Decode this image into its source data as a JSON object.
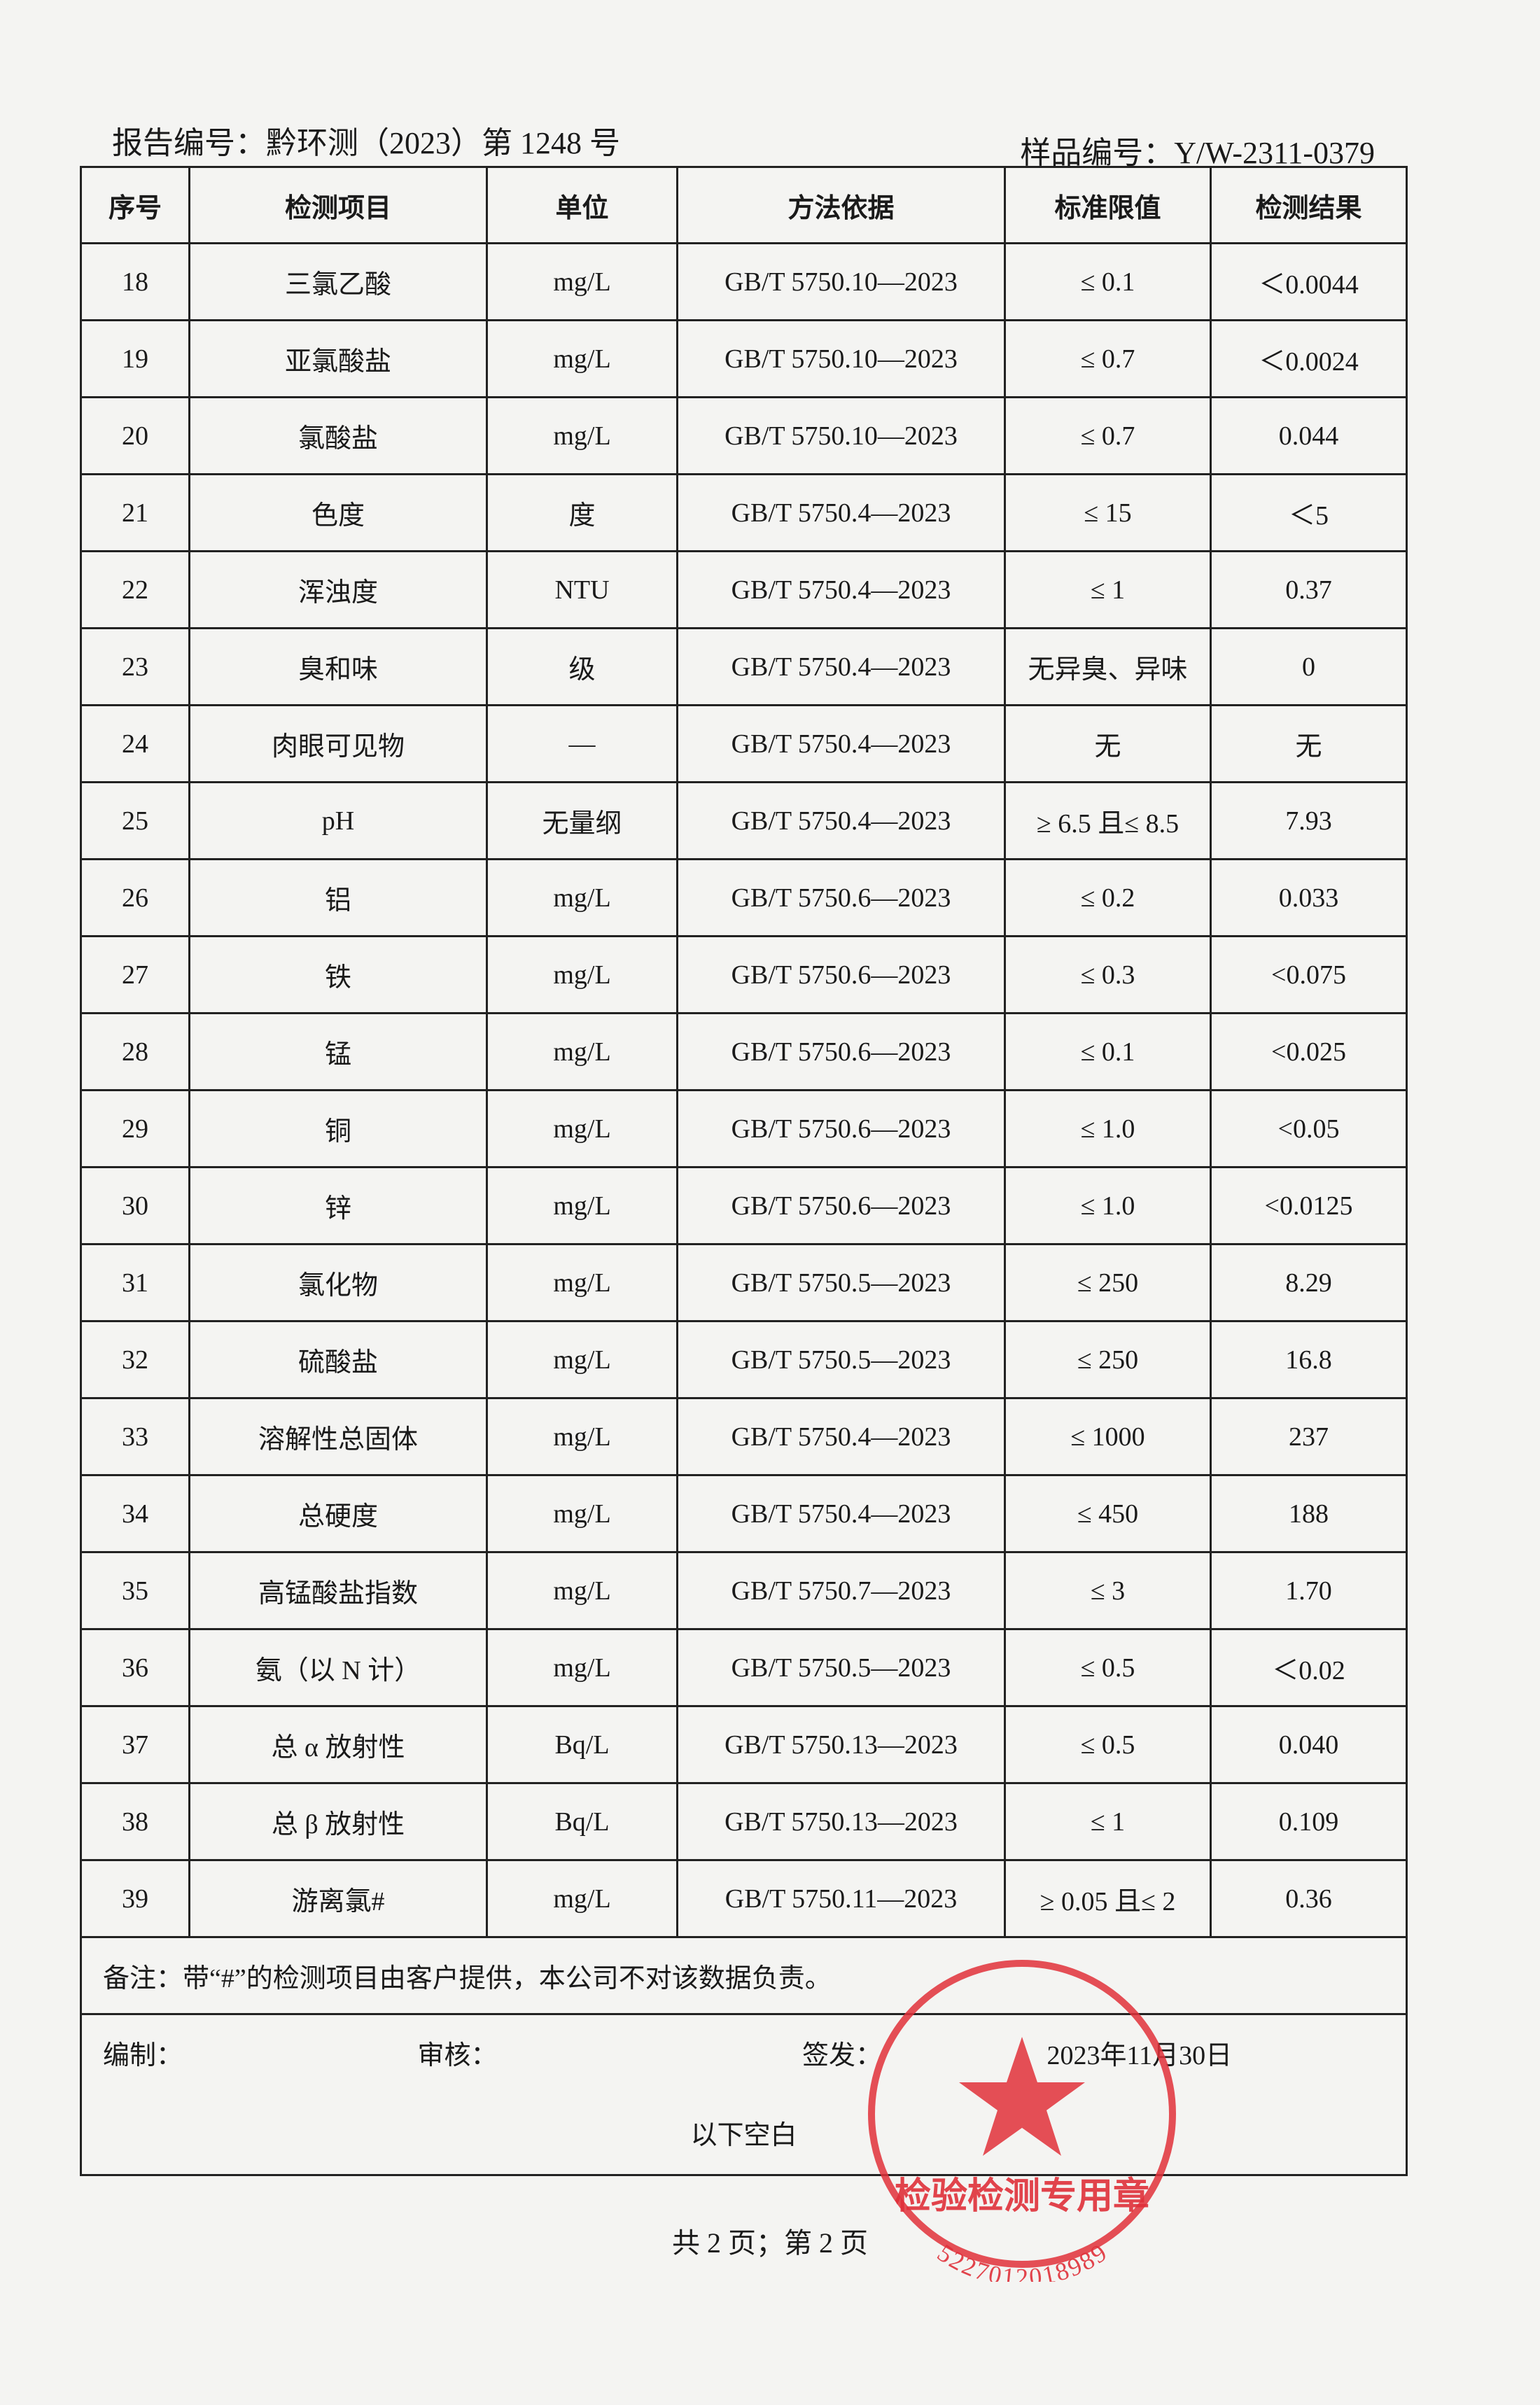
{
  "header": {
    "report_no": "报告编号：黔环测（2023）第 1248 号",
    "sample_no": "样品编号：Y/W-2311-0379"
  },
  "table": {
    "columns": [
      "序号",
      "检测项目",
      "单位",
      "方法依据",
      "标准限值",
      "检测结果"
    ],
    "rows": [
      [
        "18",
        "三氯乙酸",
        "mg/L",
        "GB/T 5750.10—2023",
        "≤ 0.1",
        "＜0.0044"
      ],
      [
        "19",
        "亚氯酸盐",
        "mg/L",
        "GB/T 5750.10—2023",
        "≤ 0.7",
        "＜0.0024"
      ],
      [
        "20",
        "氯酸盐",
        "mg/L",
        "GB/T 5750.10—2023",
        "≤ 0.7",
        "0.044"
      ],
      [
        "21",
        "色度",
        "度",
        "GB/T 5750.4—2023",
        "≤ 15",
        "＜5"
      ],
      [
        "22",
        "浑浊度",
        "NTU",
        "GB/T 5750.4—2023",
        "≤ 1",
        "0.37"
      ],
      [
        "23",
        "臭和味",
        "级",
        "GB/T 5750.4—2023",
        "无异臭、异味",
        "0"
      ],
      [
        "24",
        "肉眼可见物",
        "—",
        "GB/T 5750.4—2023",
        "无",
        "无"
      ],
      [
        "25",
        "pH",
        "无量纲",
        "GB/T 5750.4—2023",
        "≥ 6.5 且≤ 8.5",
        "7.93"
      ],
      [
        "26",
        "铝",
        "mg/L",
        "GB/T 5750.6—2023",
        "≤ 0.2",
        "0.033"
      ],
      [
        "27",
        "铁",
        "mg/L",
        "GB/T 5750.6—2023",
        "≤ 0.3",
        "<0.075"
      ],
      [
        "28",
        "锰",
        "mg/L",
        "GB/T 5750.6—2023",
        "≤ 0.1",
        "<0.025"
      ],
      [
        "29",
        "铜",
        "mg/L",
        "GB/T 5750.6—2023",
        "≤ 1.0",
        "<0.05"
      ],
      [
        "30",
        "锌",
        "mg/L",
        "GB/T 5750.6—2023",
        "≤ 1.0",
        "<0.0125"
      ],
      [
        "31",
        "氯化物",
        "mg/L",
        "GB/T 5750.5—2023",
        "≤ 250",
        "8.29"
      ],
      [
        "32",
        "硫酸盐",
        "mg/L",
        "GB/T 5750.5—2023",
        "≤ 250",
        "16.8"
      ],
      [
        "33",
        "溶解性总固体",
        "mg/L",
        "GB/T 5750.4—2023",
        "≤ 1000",
        "237"
      ],
      [
        "34",
        "总硬度",
        "mg/L",
        "GB/T 5750.4—2023",
        "≤ 450",
        "188"
      ],
      [
        "35",
        "高锰酸盐指数",
        "mg/L",
        "GB/T 5750.7—2023",
        "≤ 3",
        "1.70"
      ],
      [
        "36",
        "氨（以 N 计）",
        "mg/L",
        "GB/T 5750.5—2023",
        "≤ 0.5",
        "＜0.02"
      ],
      [
        "37",
        "总 α 放射性",
        "Bq/L",
        "GB/T 5750.13—2023",
        "≤ 0.5",
        "0.040"
      ],
      [
        "38",
        "总 β 放射性",
        "Bq/L",
        "GB/T 5750.13—2023",
        "≤ 1",
        "0.109"
      ],
      [
        "39",
        "游离氯#",
        "mg/L",
        "GB/T 5750.11—2023",
        "≥ 0.05 且≤ 2",
        "0.36"
      ]
    ]
  },
  "note": "备注：带“#”的检测项目由客户提供，本公司不对该数据负责。",
  "signatures": {
    "compiled": "编制：",
    "reviewed": "审核：",
    "issued": "签发：",
    "date": "2023年11月30日"
  },
  "blank": "以下空白",
  "stamp": {
    "title": "检验检测专用章",
    "code": "5227012018989"
  },
  "footer": "共 2 页；第 2 页"
}
